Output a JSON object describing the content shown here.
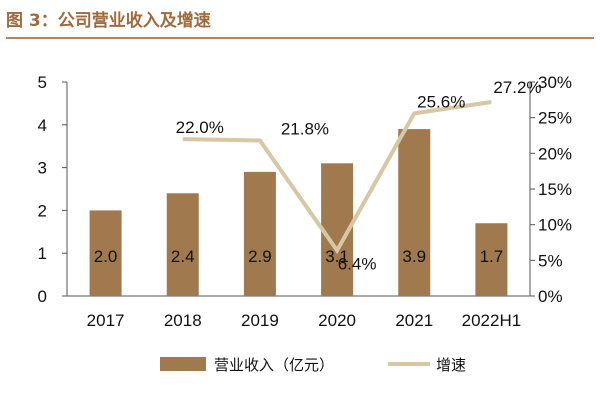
{
  "figure_title": "图 3：公司营业收入及增速",
  "colors": {
    "bar": "#a0794f",
    "line": "#d7c7a4",
    "title": "#a06a3c",
    "rule": "#b5855b"
  },
  "chart_data": {
    "type": "bar",
    "categories": [
      "2017",
      "2018",
      "2019",
      "2020",
      "2021",
      "2022H1"
    ],
    "series": [
      {
        "name": "营业收入（亿元）",
        "type": "bar",
        "axis": "left",
        "values": [
          2.0,
          2.4,
          2.9,
          3.1,
          3.9,
          1.7
        ],
        "labels": [
          "2.0",
          "2.4",
          "2.9",
          "3.1",
          "3.9",
          "1.7"
        ]
      },
      {
        "name": "增速",
        "type": "line",
        "axis": "right",
        "values": [
          null,
          22.0,
          21.8,
          6.4,
          25.6,
          27.2
        ],
        "labels": [
          "",
          "22.0%",
          "21.8%",
          "6.4%",
          "25.6%",
          "27.2%"
        ]
      }
    ],
    "y_left": {
      "min": 0,
      "max": 5,
      "ticks": [
        "0",
        "1",
        "2",
        "3",
        "4",
        "5"
      ]
    },
    "y_right": {
      "min": 0,
      "max": 30,
      "ticks": [
        "0%",
        "5%",
        "10%",
        "15%",
        "20%",
        "25%",
        "30%"
      ]
    },
    "legend_position": "bottom"
  }
}
